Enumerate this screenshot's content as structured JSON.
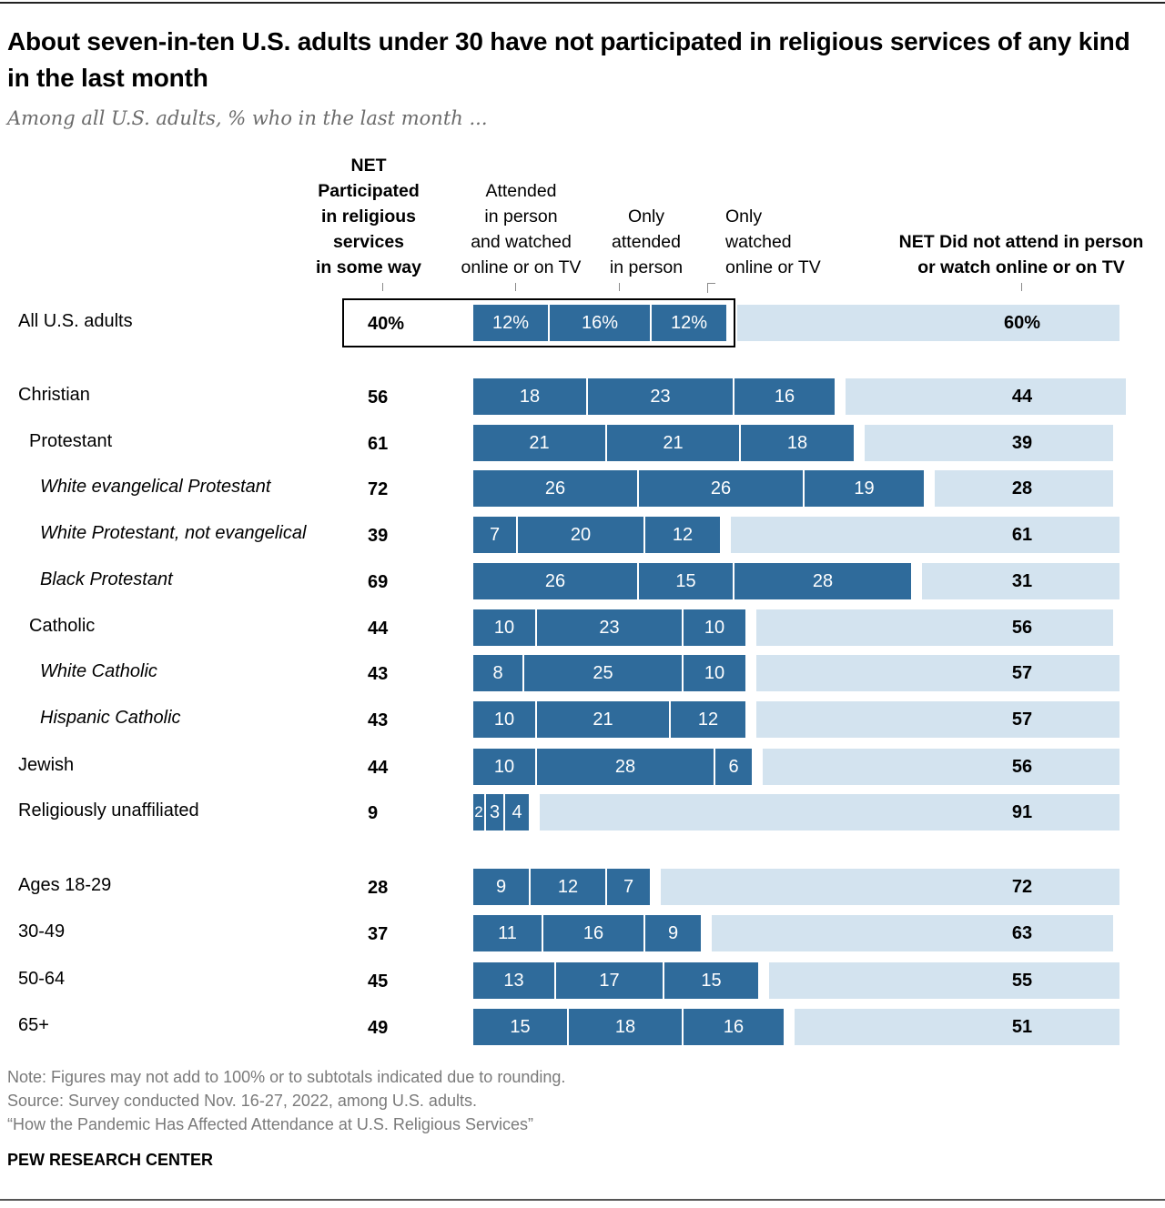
{
  "header": {
    "title": "About seven-in-ten U.S. adults under 30 have not participated in religious services of any kind in the last month",
    "subtitle": "Among all U.S. adults, % who in the last month ..."
  },
  "columns": {
    "net_participated": [
      "NET",
      "Participated",
      "in religious",
      "services",
      "in some way"
    ],
    "both": [
      "Attended",
      "in person",
      "and watched",
      "online or on TV"
    ],
    "only_person": [
      "Only",
      "attended",
      "in person"
    ],
    "only_online": [
      "Only",
      "watched",
      "online or TV"
    ],
    "net_not": [
      "NET Did not attend in person",
      "or watch online or on TV"
    ]
  },
  "colors": {
    "participated": "#2f6b9b",
    "did_not": "#d3e3ef"
  },
  "chart_data": {
    "type": "bar",
    "stacked": true,
    "orientation": "horizontal",
    "title": "About seven-in-ten U.S. adults under 30 have not participated in religious services of any kind in the last month",
    "subtitle": "Among all U.S. adults, % who in the last month ...",
    "series_names": [
      "Attended in person and watched online or on TV",
      "Only attended in person",
      "Only watched online or TV",
      "NET Did not attend in person or watch online or on TV"
    ],
    "net_label": "NET Participated in religious services in some way",
    "rows": [
      {
        "label": "All U.S. adults",
        "style": "plain",
        "indent": 0,
        "net": "40%",
        "both": 12,
        "person": 16,
        "online": 12,
        "not": 60,
        "both_label": "12%",
        "person_label": "16%",
        "online_label": "12%",
        "not_label": "60%",
        "highlight": true
      },
      {
        "label": "Christian",
        "style": "plain",
        "indent": 0,
        "net": "56",
        "both": 18,
        "person": 23,
        "online": 16,
        "not": 44,
        "both_label": "18",
        "person_label": "23",
        "online_label": "16",
        "not_label": "44"
      },
      {
        "label": "Protestant",
        "style": "plain",
        "indent": 1,
        "net": "61",
        "both": 21,
        "person": 21,
        "online": 18,
        "not": 39,
        "both_label": "21",
        "person_label": "21",
        "online_label": "18",
        "not_label": "39"
      },
      {
        "label": "White evangelical Protestant",
        "style": "italic",
        "indent": 2,
        "net": "72",
        "both": 26,
        "person": 26,
        "online": 19,
        "not": 28,
        "both_label": "26",
        "person_label": "26",
        "online_label": "19",
        "not_label": "28"
      },
      {
        "label": "White Protestant, not evangelical",
        "style": "italic",
        "indent": 2,
        "net": "39",
        "both": 7,
        "person": 20,
        "online": 12,
        "not": 61,
        "both_label": "7",
        "person_label": "20",
        "online_label": "12",
        "not_label": "61"
      },
      {
        "label": "Black Protestant",
        "style": "italic",
        "indent": 2,
        "net": "69",
        "both": 26,
        "person": 15,
        "online": 28,
        "not": 31,
        "both_label": "26",
        "person_label": "15",
        "online_label": "28",
        "not_label": "31"
      },
      {
        "label": "Catholic",
        "style": "plain",
        "indent": 1,
        "net": "44",
        "both": 10,
        "person": 23,
        "online": 10,
        "not": 56,
        "both_label": "10",
        "person_label": "23",
        "online_label": "10",
        "not_label": "56"
      },
      {
        "label": "White Catholic",
        "style": "italic",
        "indent": 2,
        "net": "43",
        "both": 8,
        "person": 25,
        "online": 10,
        "not": 57,
        "both_label": "8",
        "person_label": "25",
        "online_label": "10",
        "not_label": "57"
      },
      {
        "label": "Hispanic Catholic",
        "style": "italic",
        "indent": 2,
        "net": "43",
        "both": 10,
        "person": 21,
        "online": 12,
        "not": 57,
        "both_label": "10",
        "person_label": "21",
        "online_label": "12",
        "not_label": "57"
      },
      {
        "label": "Jewish",
        "style": "plain",
        "indent": 0,
        "net": "44",
        "both": 10,
        "person": 28,
        "online": 6,
        "not": 56,
        "both_label": "10",
        "person_label": "28",
        "online_label": "6",
        "not_label": "56"
      },
      {
        "label": "Religiously unaffiliated",
        "style": "plain",
        "indent": 0,
        "net": "9",
        "both": 2,
        "person": 3,
        "online": 4,
        "not": 91,
        "both_label": "2",
        "person_label": "3",
        "online_label": "4",
        "not_label": "91"
      },
      {
        "label": "Ages 18-29",
        "style": "plain",
        "indent": 0,
        "net": "28",
        "both": 9,
        "person": 12,
        "online": 7,
        "not": 72,
        "both_label": "9",
        "person_label": "12",
        "online_label": "7",
        "not_label": "72"
      },
      {
        "label": "30-49",
        "style": "plain",
        "indent": 0,
        "net": "37",
        "both": 11,
        "person": 16,
        "online": 9,
        "not": 63,
        "both_label": "11",
        "person_label": "16",
        "online_label": "9",
        "not_label": "63"
      },
      {
        "label": "50-64",
        "style": "plain",
        "indent": 0,
        "net": "45",
        "both": 13,
        "person": 17,
        "online": 15,
        "not": 55,
        "both_label": "13",
        "person_label": "17",
        "online_label": "15",
        "not_label": "55"
      },
      {
        "label": "65+",
        "style": "plain",
        "indent": 0,
        "net": "49",
        "both": 15,
        "person": 18,
        "online": 16,
        "not": 51,
        "both_label": "15",
        "person_label": "18",
        "online_label": "16",
        "not_label": "51"
      }
    ],
    "xlim": [
      0,
      100
    ],
    "grid": false
  },
  "footer": {
    "note": "Note: Figures may not add to 100% or to subtotals indicated due to rounding.",
    "source": "Source: Survey conducted Nov. 16-27, 2022, among U.S. adults.",
    "report": "“How the Pandemic Has Affected Attendance at U.S. Religious Services”",
    "brand": "PEW RESEARCH CENTER"
  }
}
